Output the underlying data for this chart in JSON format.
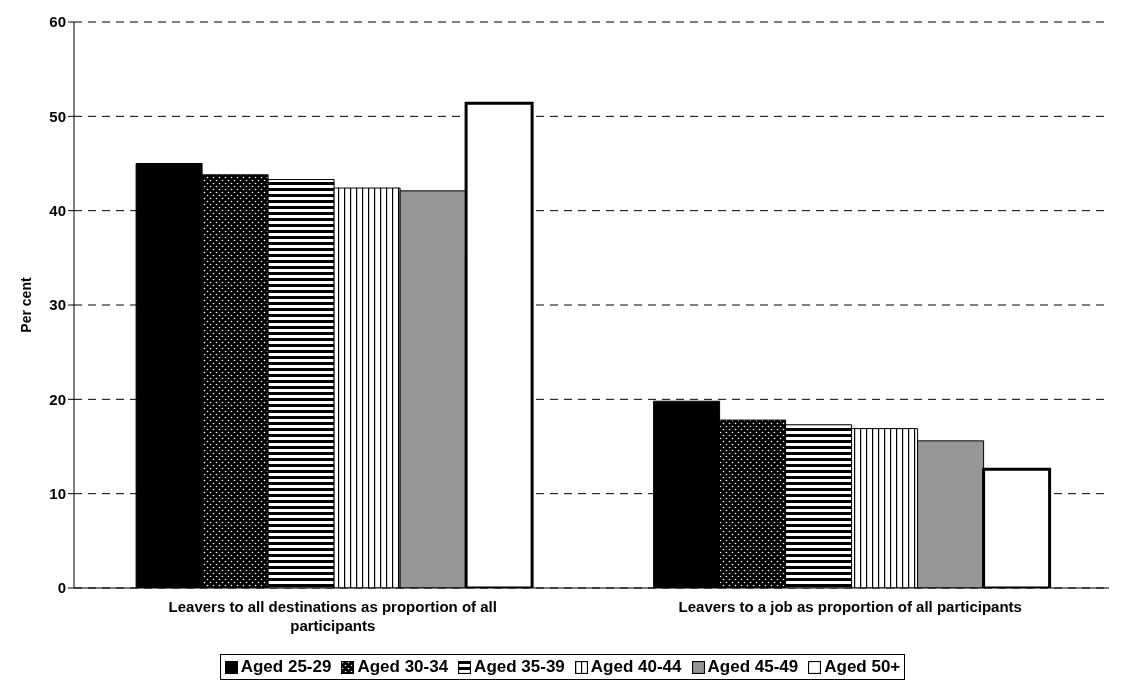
{
  "chart_data": {
    "type": "bar",
    "ylabel": "Per cent",
    "categories": [
      "Leavers to all destinations as proportion of all participants",
      "Leavers to a job as proportion of all participants"
    ],
    "series": [
      {
        "name": "Aged 25-29",
        "color": "#000000",
        "values": [
          45.0,
          19.8
        ]
      },
      {
        "name": "Aged 30-34",
        "color": "#000000",
        "values": [
          43.8,
          17.8
        ]
      },
      {
        "name": "Aged 35-39",
        "color": "#000000",
        "values": [
          43.3,
          17.3
        ]
      },
      {
        "name": "Aged 40-44",
        "color": "#000000",
        "values": [
          42.4,
          16.9
        ]
      },
      {
        "name": "Aged 45-49",
        "color": "#969696",
        "values": [
          42.1,
          15.6
        ]
      },
      {
        "name": "Aged 50+",
        "color": "#ffffff",
        "values": [
          51.4,
          12.6
        ]
      }
    ],
    "ylim": [
      0,
      60
    ],
    "yticks": [
      0,
      10,
      20,
      30,
      40,
      50,
      60
    ],
    "grid": "y",
    "legend": "bottom"
  }
}
